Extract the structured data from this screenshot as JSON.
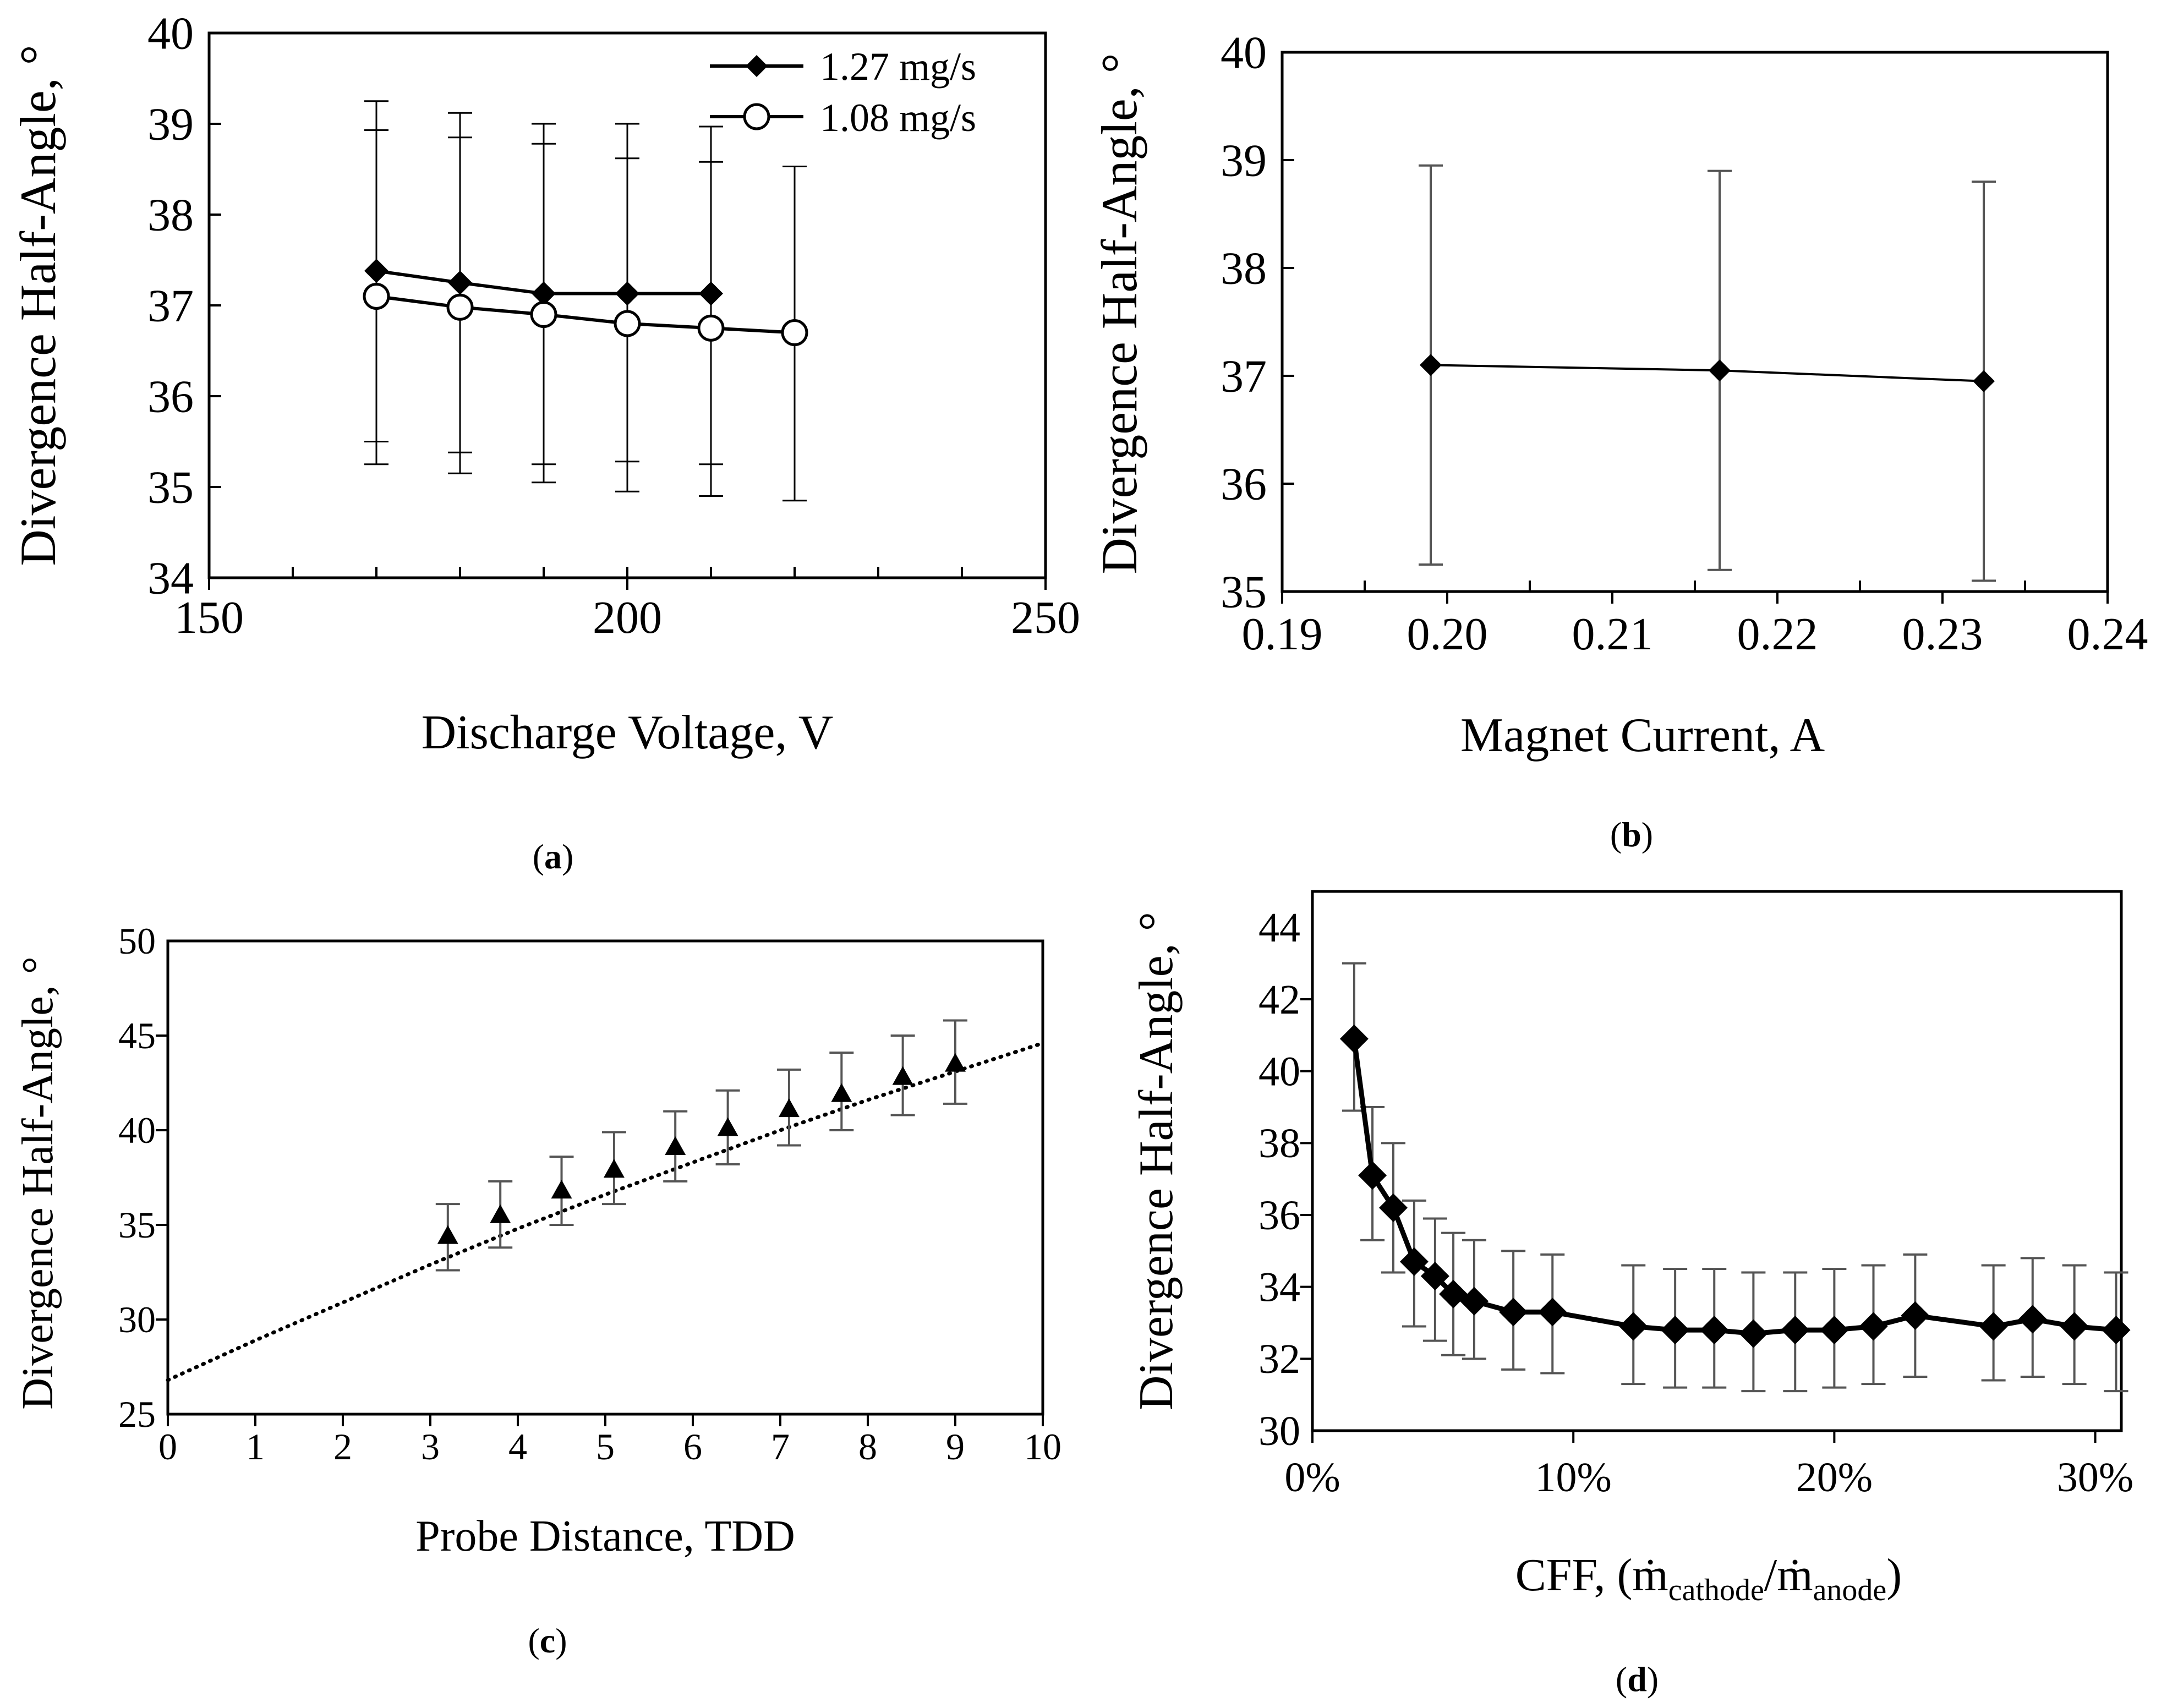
{
  "panels": {
    "a": {
      "caption": "a"
    },
    "b": {
      "caption": "b"
    },
    "c": {
      "caption": "c"
    },
    "d": {
      "caption": "d"
    }
  },
  "chart_data": [
    {
      "id": "a",
      "type": "line",
      "xlabel": "Discharge Voltage, V",
      "ylabel": "Divergence Half-Angle, °",
      "xlim": [
        150,
        250
      ],
      "ylim": [
        34,
        40
      ],
      "xticks": [
        150,
        200,
        250
      ],
      "yticks": [
        34,
        35,
        36,
        37,
        38,
        39,
        40
      ],
      "legend_position": "top-right",
      "series": [
        {
          "name": "1.27 mg/s",
          "marker": "diamond",
          "x": [
            170,
            180,
            190,
            200,
            210
          ],
          "y": [
            37.38,
            37.25,
            37.13,
            37.13,
            37.13
          ],
          "err_low": [
            35.25,
            35.15,
            35.05,
            34.95,
            34.9
          ],
          "err_high": [
            39.25,
            39.12,
            39.0,
            39.0,
            38.97
          ]
        },
        {
          "name": "1.08 mg/s",
          "marker": "circle",
          "x": [
            170,
            180,
            190,
            200,
            210,
            220
          ],
          "y": [
            37.1,
            36.98,
            36.9,
            36.8,
            36.75,
            36.7
          ],
          "err_low": [
            35.5,
            35.38,
            35.25,
            35.28,
            35.25,
            34.85
          ],
          "err_high": [
            38.93,
            38.85,
            38.78,
            38.62,
            38.58,
            38.53
          ]
        }
      ]
    },
    {
      "id": "b",
      "type": "line",
      "xlabel": "Magnet Current, A",
      "ylabel": "Divergence Half-Angle, °",
      "xlim": [
        0.19,
        0.24
      ],
      "ylim": [
        35,
        40
      ],
      "xticks": [
        "0.19",
        "0.20",
        "0.21",
        "0.22",
        "0.23",
        "0.24"
      ],
      "yticks": [
        35,
        36,
        37,
        38,
        39,
        40
      ],
      "series": [
        {
          "name": "",
          "marker": "diamond",
          "x": [
            0.199,
            0.2165,
            0.2325
          ],
          "y": [
            37.1,
            37.05,
            36.95
          ],
          "err_low": [
            35.25,
            35.2,
            35.1
          ],
          "err_high": [
            38.95,
            38.9,
            38.8
          ]
        }
      ]
    },
    {
      "id": "c",
      "type": "scatter",
      "xlabel": "Probe Distance, TDD",
      "ylabel": "Divergence Half-Angle, °",
      "xlim": [
        0,
        10
      ],
      "ylim": [
        25,
        50
      ],
      "xticks": [
        0,
        1,
        2,
        3,
        4,
        5,
        6,
        7,
        8,
        9,
        10
      ],
      "yticks": [
        25,
        30,
        35,
        40,
        45,
        50
      ],
      "series": [
        {
          "name": "",
          "marker": "triangle",
          "x": [
            3.2,
            3.8,
            4.5,
            5.1,
            5.8,
            6.4,
            7.1,
            7.7,
            8.4,
            9.0
          ],
          "y": [
            34.4,
            35.5,
            36.8,
            37.9,
            39.1,
            40.1,
            41.1,
            41.9,
            42.8,
            43.5
          ],
          "err_low": [
            32.6,
            33.8,
            35.0,
            36.1,
            37.3,
            38.2,
            39.2,
            40.0,
            40.8,
            41.4
          ],
          "err_high": [
            36.1,
            37.3,
            38.6,
            39.9,
            41.0,
            42.1,
            43.2,
            44.1,
            45.0,
            45.8
          ]
        }
      ],
      "trendline": {
        "style": "dotted",
        "x": [
          0,
          1,
          2,
          3,
          4,
          5,
          6,
          7,
          8,
          9,
          10
        ],
        "y": [
          26.8,
          28.9,
          30.9,
          32.9,
          34.8,
          36.6,
          38.3,
          40.0,
          41.6,
          43.1,
          44.6
        ]
      }
    },
    {
      "id": "d",
      "type": "line",
      "xlabel": "CFF, (ṁ",
      "xlabel_sub1": "cathode",
      "xlabel_mid": "/ṁ",
      "xlabel_sub2": "anode",
      "xlabel_end": ")",
      "ylabel": "Divergence Half-Angle, °",
      "xlim": [
        0,
        31
      ],
      "ylim": [
        30,
        45
      ],
      "xticks": [
        0,
        10,
        20,
        30
      ],
      "xtick_labels": [
        "0%",
        "10%",
        "20%",
        "30%"
      ],
      "yticks": [
        30,
        32,
        34,
        36,
        38,
        40,
        42,
        44
      ],
      "series": [
        {
          "name": "",
          "marker": "diamond",
          "x": [
            1.6,
            2.3,
            3.1,
            3.9,
            4.7,
            5.4,
            6.2,
            7.7,
            9.2,
            12.3,
            13.9,
            15.4,
            16.9,
            18.5,
            20.0,
            21.5,
            23.1,
            26.1,
            27.6,
            29.2,
            30.8
          ],
          "y": [
            40.9,
            37.1,
            36.2,
            34.7,
            34.3,
            33.8,
            33.6,
            33.3,
            33.3,
            32.9,
            32.8,
            32.8,
            32.7,
            32.8,
            32.8,
            32.9,
            33.2,
            32.9,
            33.1,
            32.9,
            32.8
          ],
          "err_low": [
            38.9,
            35.3,
            34.4,
            32.9,
            32.5,
            32.1,
            32.0,
            31.7,
            31.6,
            31.3,
            31.2,
            31.2,
            31.1,
            31.1,
            31.2,
            31.3,
            31.5,
            31.4,
            31.5,
            31.3,
            31.1
          ],
          "err_high": [
            43.0,
            39.0,
            38.0,
            36.4,
            35.9,
            35.5,
            35.3,
            35.0,
            34.9,
            34.6,
            34.5,
            34.5,
            34.4,
            34.4,
            34.5,
            34.6,
            34.9,
            34.6,
            34.8,
            34.6,
            34.4
          ]
        }
      ]
    }
  ]
}
